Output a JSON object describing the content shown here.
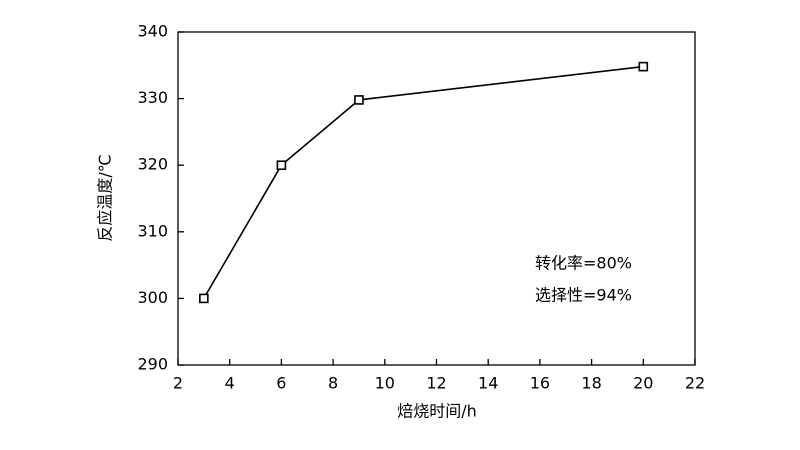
{
  "chart_data": {
    "type": "line",
    "x_label": "焙烧时间/h",
    "y_label": "反应温度/℃",
    "annotations": [
      "转化率=80%",
      "选择性=94%"
    ],
    "x": [
      3,
      6,
      9,
      20
    ],
    "series": [
      {
        "name": null,
        "color": "#000000",
        "values": [
          300,
          320,
          329.8,
          334.8
        ]
      }
    ],
    "xlim": [
      2,
      22
    ],
    "xticks": [
      2,
      4,
      6,
      8,
      10,
      12,
      14,
      16,
      18,
      20,
      22
    ],
    "ylim": [
      290,
      340
    ],
    "yticks": [
      290,
      300,
      310,
      320,
      330,
      340
    ],
    "grid": false
  }
}
